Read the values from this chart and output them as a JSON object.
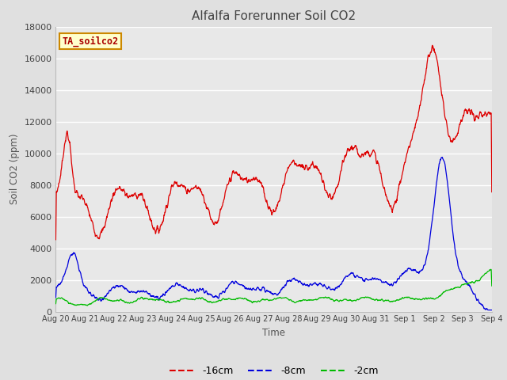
{
  "title": "Alfalfa Forerunner Soil CO2",
  "ylabel": "Soil CO2 (ppm)",
  "xlabel": "Time",
  "annotation": "TA_soilco2",
  "legend_labels": [
    "-16cm",
    "-8cm",
    "-2cm"
  ],
  "legend_colors": [
    "#dd0000",
    "#0000dd",
    "#00bb00"
  ],
  "ylim": [
    0,
    18000
  ],
  "yticks": [
    0,
    2000,
    4000,
    6000,
    8000,
    10000,
    12000,
    14000,
    16000,
    18000
  ],
  "xtick_labels": [
    "Aug 20",
    "Aug 21",
    "Aug 22",
    "Aug 23",
    "Aug 24",
    "Aug 25",
    "Aug 26",
    "Aug 27",
    "Aug 28",
    "Aug 29",
    "Aug 30",
    "Aug 31",
    "Sep 1",
    "Sep 2",
    "Sep 3",
    "Sep 4"
  ],
  "bg_color": "#e0e0e0",
  "plot_bg_color": "#e8e8e8",
  "grid_color": "#ffffff",
  "title_color": "#444444",
  "axis_label_color": "#555555",
  "annotation_bg": "#ffffcc",
  "annotation_border": "#cc8800",
  "annotation_text_color": "#aa0000",
  "n_points": 1500,
  "seed": 7
}
